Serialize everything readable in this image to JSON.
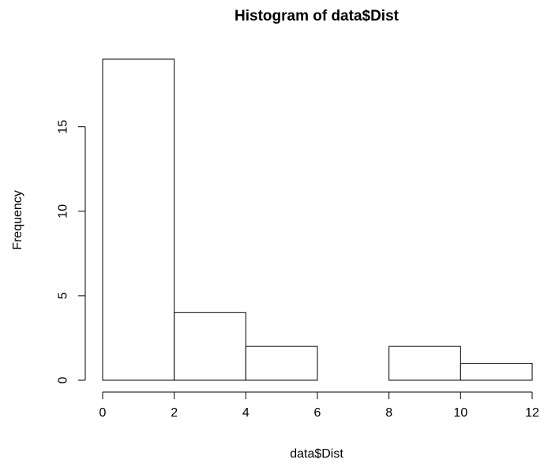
{
  "chart_data": {
    "type": "bar",
    "title": "Histogram of data$Dist",
    "xlabel": "data$Dist",
    "ylabel": "Frequency",
    "bins": [
      {
        "start": 0,
        "end": 2,
        "count": 19
      },
      {
        "start": 2,
        "end": 4,
        "count": 4
      },
      {
        "start": 4,
        "end": 6,
        "count": 2
      },
      {
        "start": 6,
        "end": 8,
        "count": 0
      },
      {
        "start": 8,
        "end": 10,
        "count": 2
      },
      {
        "start": 10,
        "end": 12,
        "count": 1
      }
    ],
    "xlim": [
      0,
      12
    ],
    "ylim": [
      0,
      19
    ],
    "x_ticks": [
      0,
      2,
      4,
      6,
      8,
      10,
      12
    ],
    "y_ticks": [
      0,
      5,
      10,
      15
    ],
    "grid": false
  }
}
